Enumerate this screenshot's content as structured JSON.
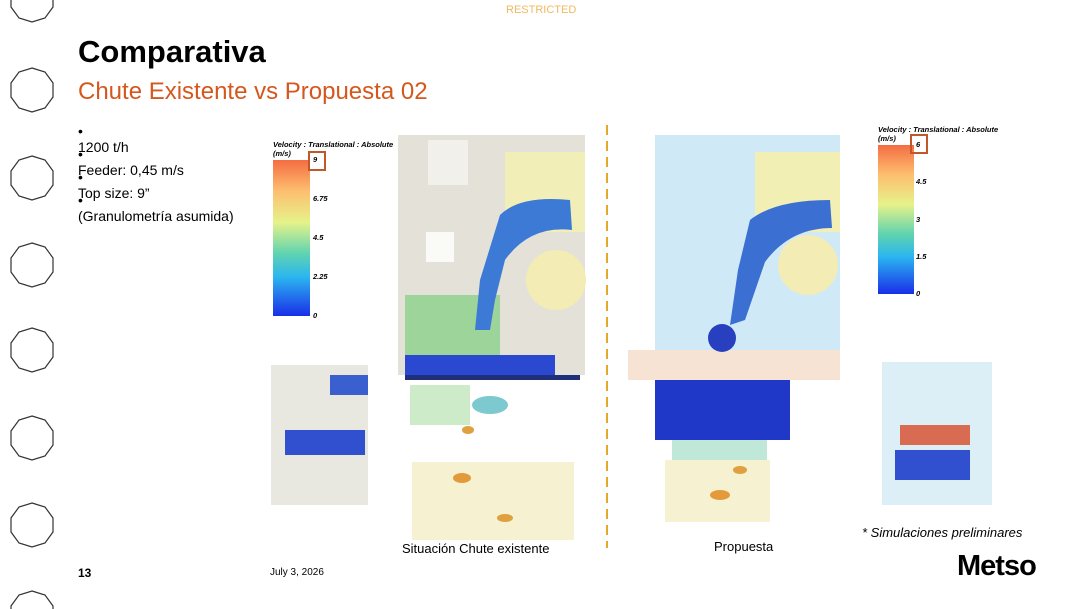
{
  "header": {
    "classification": "RESTRICTED",
    "title": "Comparativa",
    "subtitle": "Chute Existente vs Propuesta 02"
  },
  "bullets": [
    "1200 t/h",
    "Feeder: 0,45 m/s",
    "Top size: 9”",
    "(Granulometría asumida)"
  ],
  "figures": [
    {
      "legend": {
        "title": "Velocity : Translational : Absolute",
        "unit": "(m/s)",
        "ticks": [
          "9",
          "6.75",
          "4.5",
          "2.25",
          "0"
        ]
      },
      "caption": "Situación Chute existente"
    },
    {
      "legend": {
        "title": "Velocity : Translational : Absolute",
        "unit": "(m/s)",
        "ticks": [
          "6",
          "4.5",
          "3",
          "1.5",
          "0"
        ]
      },
      "caption": "Propuesta"
    }
  ],
  "note": "* Simulaciones preliminares",
  "footer": {
    "page": "13",
    "date": "July 3, 2026",
    "logo": "Metso"
  }
}
